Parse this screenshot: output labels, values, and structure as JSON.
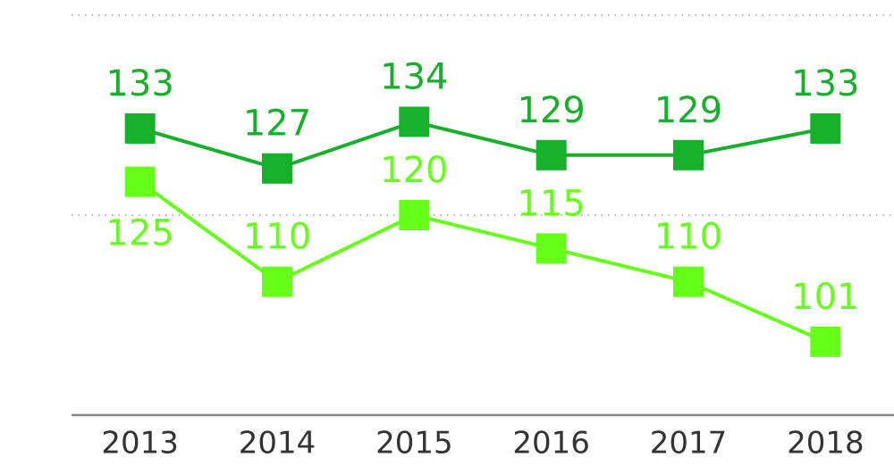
{
  "chart_data": {
    "type": "line",
    "categories": [
      "2013",
      "2014",
      "2015",
      "2016",
      "2017",
      "2018"
    ],
    "series": [
      {
        "color": "#17b02a",
        "values": [
          133,
          127,
          134,
          129,
          129,
          133
        ]
      },
      {
        "color": "#66ff1a",
        "values": [
          125,
          110,
          120,
          115,
          110,
          101
        ]
      }
    ],
    "ylim": [
      90,
      150
    ],
    "yticks": [
      120,
      150
    ],
    "grid": true
  }
}
